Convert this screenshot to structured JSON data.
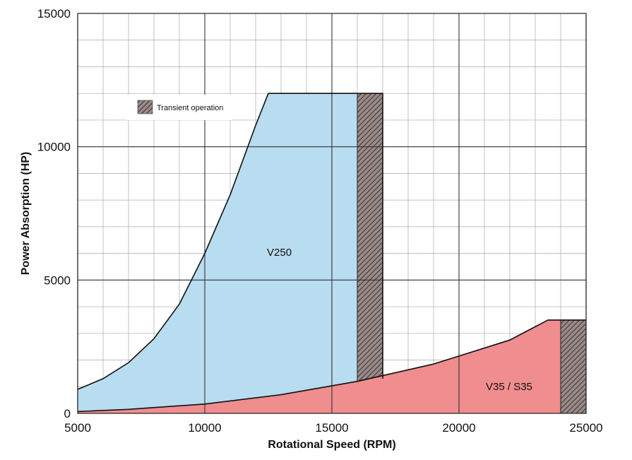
{
  "chart_data": {
    "type": "area",
    "xlabel": "Rotational Speed (RPM)",
    "ylabel": "Power Absorption (HP)",
    "xlim": [
      5000,
      25000
    ],
    "ylim": [
      0,
      15000
    ],
    "x_ticks": [
      5000,
      10000,
      15000,
      20000,
      25000
    ],
    "y_ticks": [
      0,
      5000,
      10000,
      15000
    ],
    "grid": true,
    "legend": {
      "label": "Transient operation",
      "placement": "top-left"
    },
    "regions": [
      {
        "name": "V250",
        "color": "#b8dcf0",
        "boundary": [
          {
            "x": 5000,
            "y": 900
          },
          {
            "x": 6000,
            "y": 1300
          },
          {
            "x": 7000,
            "y": 1900
          },
          {
            "x": 8000,
            "y": 2800
          },
          {
            "x": 9000,
            "y": 4100
          },
          {
            "x": 10000,
            "y": 6000
          },
          {
            "x": 11000,
            "y": 8200
          },
          {
            "x": 12000,
            "y": 10800
          },
          {
            "x": 12500,
            "y": 12000
          },
          {
            "x": 17000,
            "y": 12000
          },
          {
            "x": 17000,
            "y": 1300
          }
        ],
        "transient_range": [
          16000,
          17000
        ]
      },
      {
        "name": "V35 / S35",
        "color": "#ef8d8f",
        "boundary": [
          {
            "x": 5000,
            "y": 70
          },
          {
            "x": 7000,
            "y": 150
          },
          {
            "x": 10000,
            "y": 350
          },
          {
            "x": 13000,
            "y": 700
          },
          {
            "x": 16000,
            "y": 1200
          },
          {
            "x": 19000,
            "y": 1850
          },
          {
            "x": 22000,
            "y": 2750
          },
          {
            "x": 23500,
            "y": 3500
          },
          {
            "x": 25000,
            "y": 3500
          }
        ],
        "transient_range": [
          24000,
          25000
        ]
      }
    ]
  }
}
